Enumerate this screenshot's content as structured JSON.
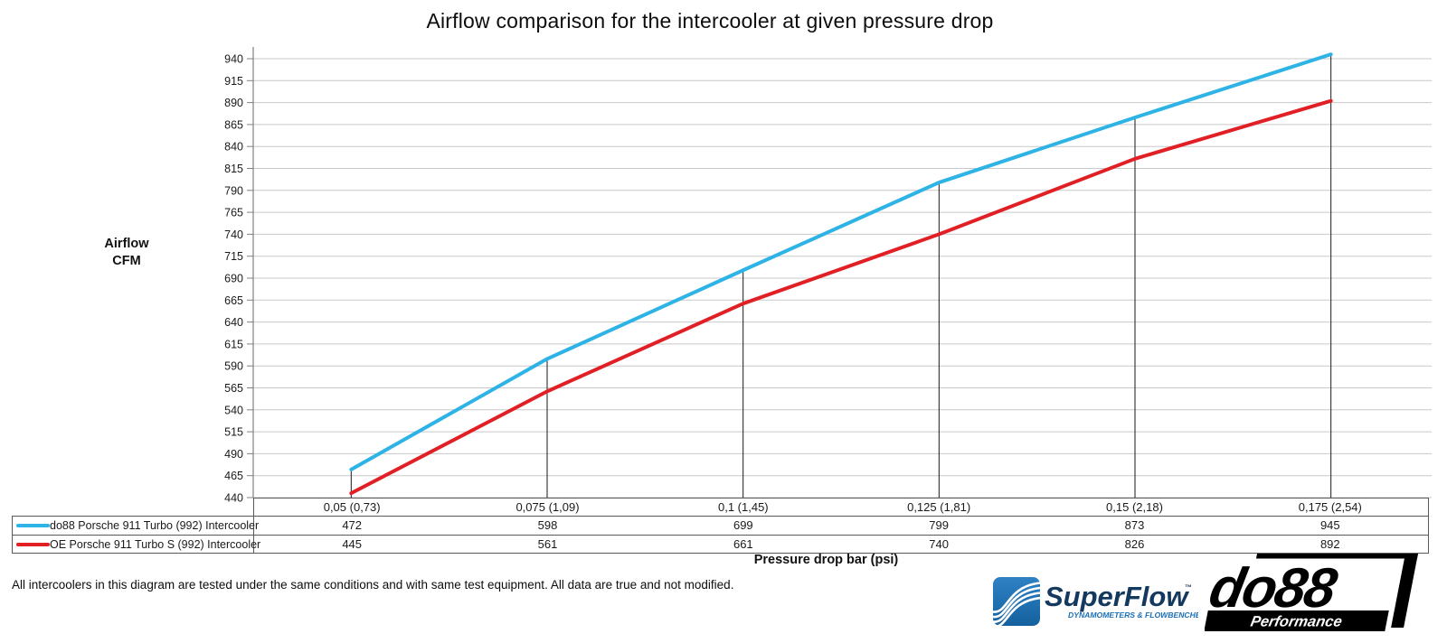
{
  "chart_data": {
    "type": "line",
    "title": "Airflow comparison for the intercooler at given pressure drop",
    "xlabel": "Pressure drop bar (psi)",
    "ylabel": "Airflow CFM",
    "ylabel_lines": {
      "0": "Airflow",
      "1": "CFM"
    },
    "categories": [
      "0,05 (0,73)",
      "0,075 (1,09)",
      "0,1 (1,45)",
      "0,125 (1,81)",
      "0,15 (2,18)",
      "0,175 (2,54)"
    ],
    "series": [
      {
        "name": "do88 Porsche 911 Turbo (992) Intercooler",
        "color": "#2EB3E6",
        "values": [
          472,
          598,
          699,
          799,
          873,
          945
        ]
      },
      {
        "name": "OE Porsche 911 Turbo S (992) Intercooler",
        "color": "#E12026",
        "values": [
          445,
          561,
          661,
          740,
          826,
          892
        ]
      }
    ],
    "ylim": [
      440,
      940
    ],
    "ytick_step": 25,
    "grid": true,
    "legend_position": "table-left",
    "colors": {
      "gridline": "#C9C9C9",
      "axis": "#808080",
      "drop_line": "#1a1a1a",
      "table_border": "#595959"
    }
  },
  "footer": {
    "note": "All intercoolers in this diagram are tested under the same conditions and with same test equipment. All data are true and not modified.",
    "superflow_logo": {
      "text": "SuperFlow",
      "tm": "™",
      "tagline": "DYNAMOMETERS & FLOWBENCHES",
      "icon_color_top": "#2E81C4",
      "icon_color_bottom": "#15619F",
      "text_color": "#14395F",
      "tagline_color": "#1A6FB5"
    },
    "do88_logo": {
      "text": "do88",
      "subtext": "Performance",
      "color": "#000000"
    }
  }
}
